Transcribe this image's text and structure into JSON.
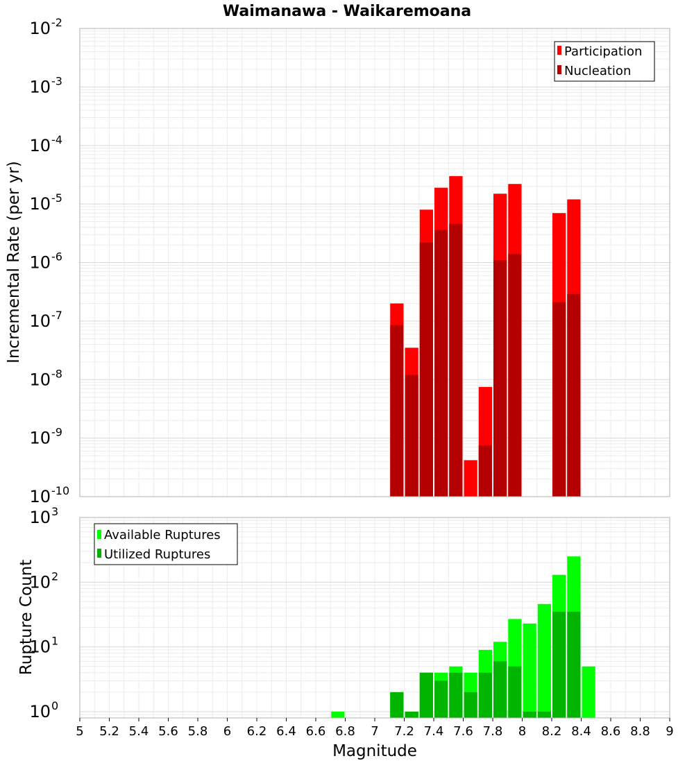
{
  "chart_data": [
    {
      "type": "bar",
      "title": "Waimanawa - Waikaremoana",
      "ylabel": "Incremental Rate (per yr)",
      "y_scale": "log",
      "ylim": [
        1e-10,
        0.01
      ],
      "y_tick_base": "10",
      "y_tick_exponents": [
        "-10",
        "-9",
        "-8",
        "-7",
        "-6",
        "-5",
        "-4",
        "-3",
        "-2"
      ],
      "legend_position": "top-right",
      "x": [
        7.15,
        7.25,
        7.35,
        7.45,
        7.55,
        7.65,
        7.75,
        7.85,
        7.95,
        8.25,
        8.35
      ],
      "series": [
        {
          "name": "Participation",
          "color": "#ff0000",
          "values": [
            2e-07,
            3.5e-08,
            8e-06,
            1.9e-05,
            3e-05,
            4.2e-10,
            7.5e-09,
            1.5e-05,
            2.2e-05,
            7e-06,
            1.2e-05
          ]
        },
        {
          "name": "Nucleation",
          "color": "#b40000",
          "values": [
            8.5e-08,
            1.2e-08,
            2.2e-06,
            3.6e-06,
            4.6e-06,
            null,
            7.5e-10,
            1.1e-06,
            1.4e-06,
            2.1e-07,
            2.9e-07
          ]
        }
      ]
    },
    {
      "type": "bar",
      "xlabel": "Magnitude",
      "ylabel": "Rupture Count",
      "y_scale": "log",
      "ylim": [
        0.8,
        1000
      ],
      "y_tick_base": "10",
      "y_tick_exponents": [
        "0",
        "1",
        "2",
        "3"
      ],
      "xlim": [
        5,
        9
      ],
      "x_ticks": [
        "5",
        "5.2",
        "5.4",
        "5.6",
        "5.8",
        "6",
        "6.2",
        "6.4",
        "6.6",
        "6.8",
        "7",
        "7.2",
        "7.4",
        "7.6",
        "7.8",
        "8",
        "8.2",
        "8.4",
        "8.6",
        "8.8",
        "9"
      ],
      "legend_position": "top-left",
      "x": [
        6.75,
        7.15,
        7.25,
        7.35,
        7.45,
        7.55,
        7.65,
        7.75,
        7.85,
        7.95,
        8.05,
        8.15,
        8.25,
        8.35,
        8.45
      ],
      "series": [
        {
          "name": "Available Ruptures",
          "color": "#00ff00",
          "values": [
            1,
            2,
            1,
            4,
            4,
            5,
            4,
            9,
            12,
            27,
            23,
            46,
            130,
            250,
            5
          ]
        },
        {
          "name": "Utilized Ruptures",
          "color": "#00b400",
          "values": [
            null,
            2,
            1,
            4,
            3,
            4,
            2,
            4,
            6,
            5,
            1,
            1,
            35,
            35,
            null
          ]
        }
      ]
    }
  ]
}
